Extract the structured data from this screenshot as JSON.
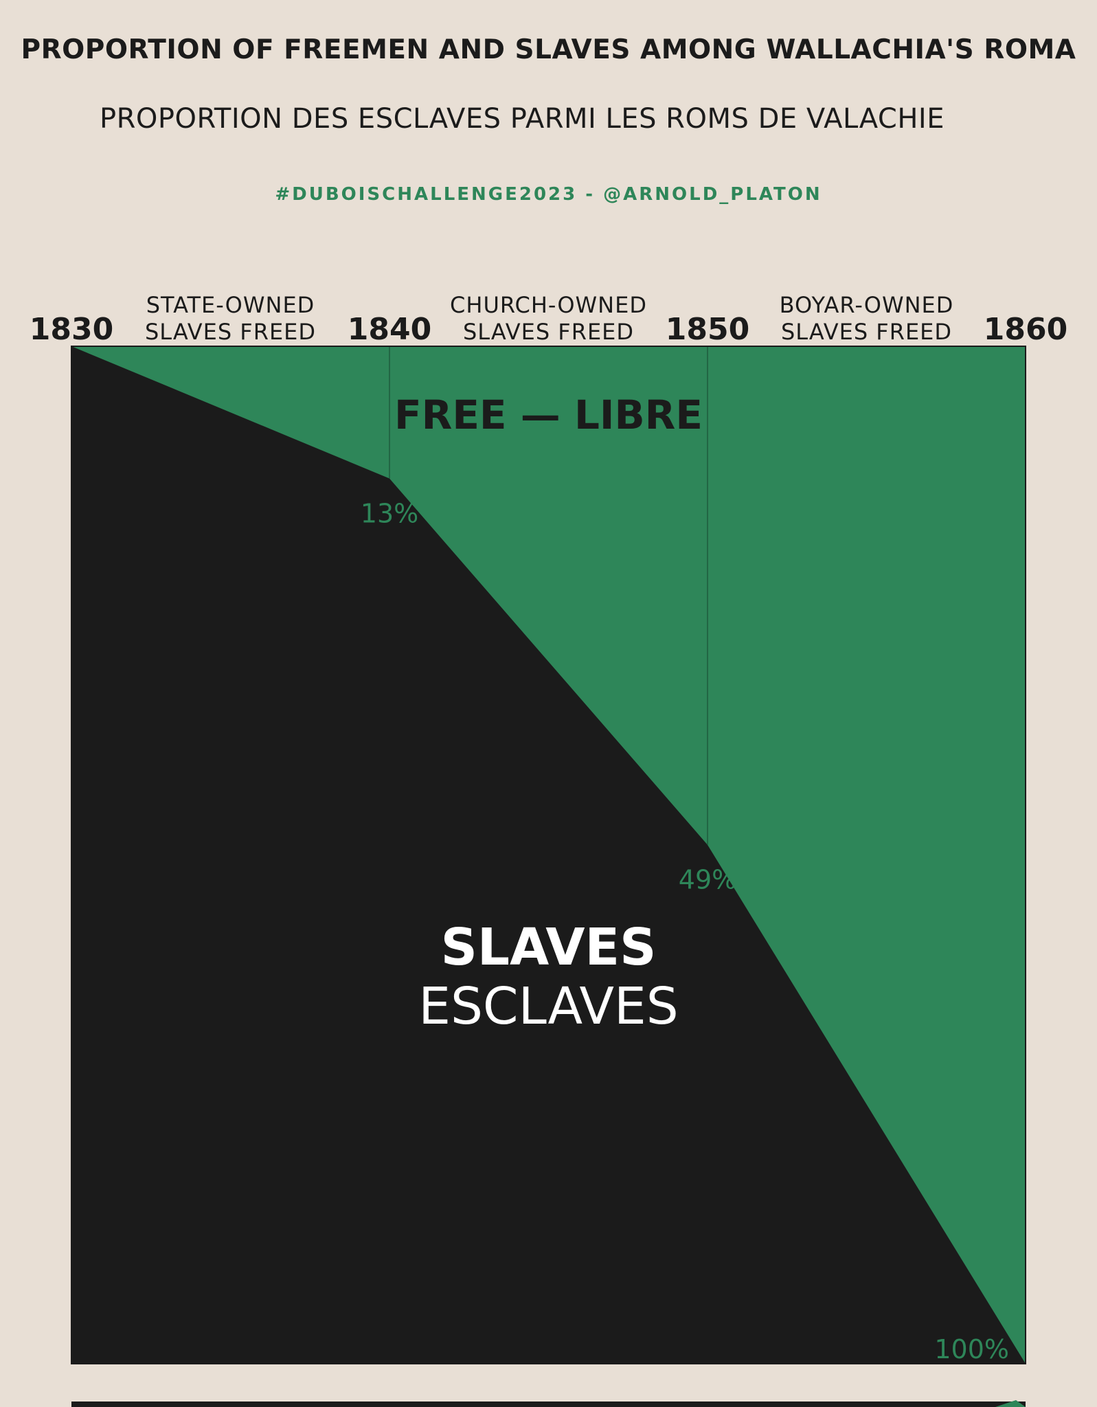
{
  "title": "PROPORTION OF FREEMEN AND SLAVES AMONG WALLACHIA'S ROMA",
  "subtitle": "PROPORTION DES ESCLAVES PARMI LES ROMS DE VALACHIE",
  "credit": "#DUBOISCHALLENGE2023 - @ARNOLD_PLATON",
  "colors": {
    "background": "#e8dfd5",
    "free": "#2e8659",
    "slaves": "#1b1b1b",
    "text": "#1b1b1b"
  },
  "chart_data": {
    "type": "area",
    "x_ticks": [
      "1830",
      "1840",
      "1850",
      "1860"
    ],
    "xlim": [
      1830,
      1860
    ],
    "ylim": [
      0,
      100
    ],
    "grid": false,
    "period_labels": [
      {
        "x_from": 1830,
        "x_to": 1840,
        "lines": [
          "STATE-OWNED",
          "SLAVES FREED"
        ]
      },
      {
        "x_from": 1840,
        "x_to": 1850,
        "lines": [
          "CHURCH-OWNED",
          "SLAVES FREED"
        ]
      },
      {
        "x_from": 1850,
        "x_to": 1860,
        "lines": [
          "BOYAR-OWNED",
          "SLAVES FREED"
        ]
      }
    ],
    "series": [
      {
        "name": "FREE — LIBRE",
        "color": "#2e8659",
        "x": [
          1830,
          1840,
          1850,
          1860
        ],
        "values": [
          0,
          13,
          49,
          100
        ]
      },
      {
        "name_lines": [
          "SLAVES",
          "ESCLAVES"
        ],
        "color": "#1b1b1b",
        "x": [
          1830,
          1840,
          1850,
          1860
        ],
        "values": [
          100,
          87,
          51,
          0
        ]
      }
    ],
    "data_labels": [
      {
        "x": 1840,
        "value": 13,
        "text": "13%"
      },
      {
        "x": 1850,
        "value": 49,
        "text": "49%"
      },
      {
        "x": 1860,
        "value": 100,
        "text": "100%"
      }
    ]
  }
}
